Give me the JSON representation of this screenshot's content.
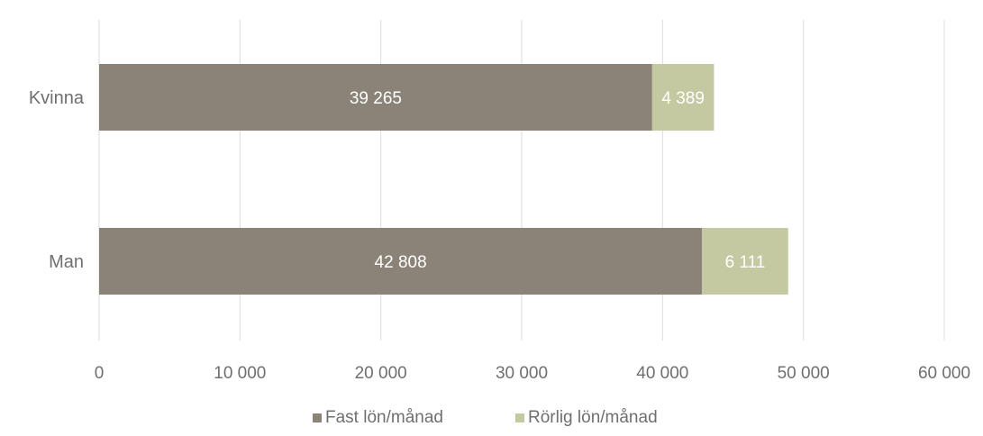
{
  "chart_data": {
    "type": "bar",
    "orientation": "horizontal",
    "stacked": true,
    "categories": [
      "Kvinna",
      "Man"
    ],
    "series": [
      {
        "name": "Fast lön/månad",
        "values": [
          39265,
          42808
        ],
        "labels": [
          "39 265",
          "42 808"
        ],
        "color": "#8b8378"
      },
      {
        "name": "Rörlig lön/månad",
        "values": [
          4389,
          6111
        ],
        "labels": [
          "4 389",
          "6 111"
        ],
        "color": "#c5c9a2"
      }
    ],
    "xlim": [
      0,
      60000
    ],
    "xticks": [
      0,
      10000,
      20000,
      30000,
      40000,
      50000,
      60000
    ],
    "xtick_labels": [
      "0",
      "10 000",
      "20 000",
      "30 000",
      "40 000",
      "50 000",
      "60 000"
    ],
    "grid": "vertical",
    "legend_position": "bottom",
    "title": "",
    "xlabel": "",
    "ylabel": "",
    "colors": {
      "grid": "#dcdcdc",
      "text": "#6f6f6f",
      "bar_label": "#ffffff"
    }
  }
}
